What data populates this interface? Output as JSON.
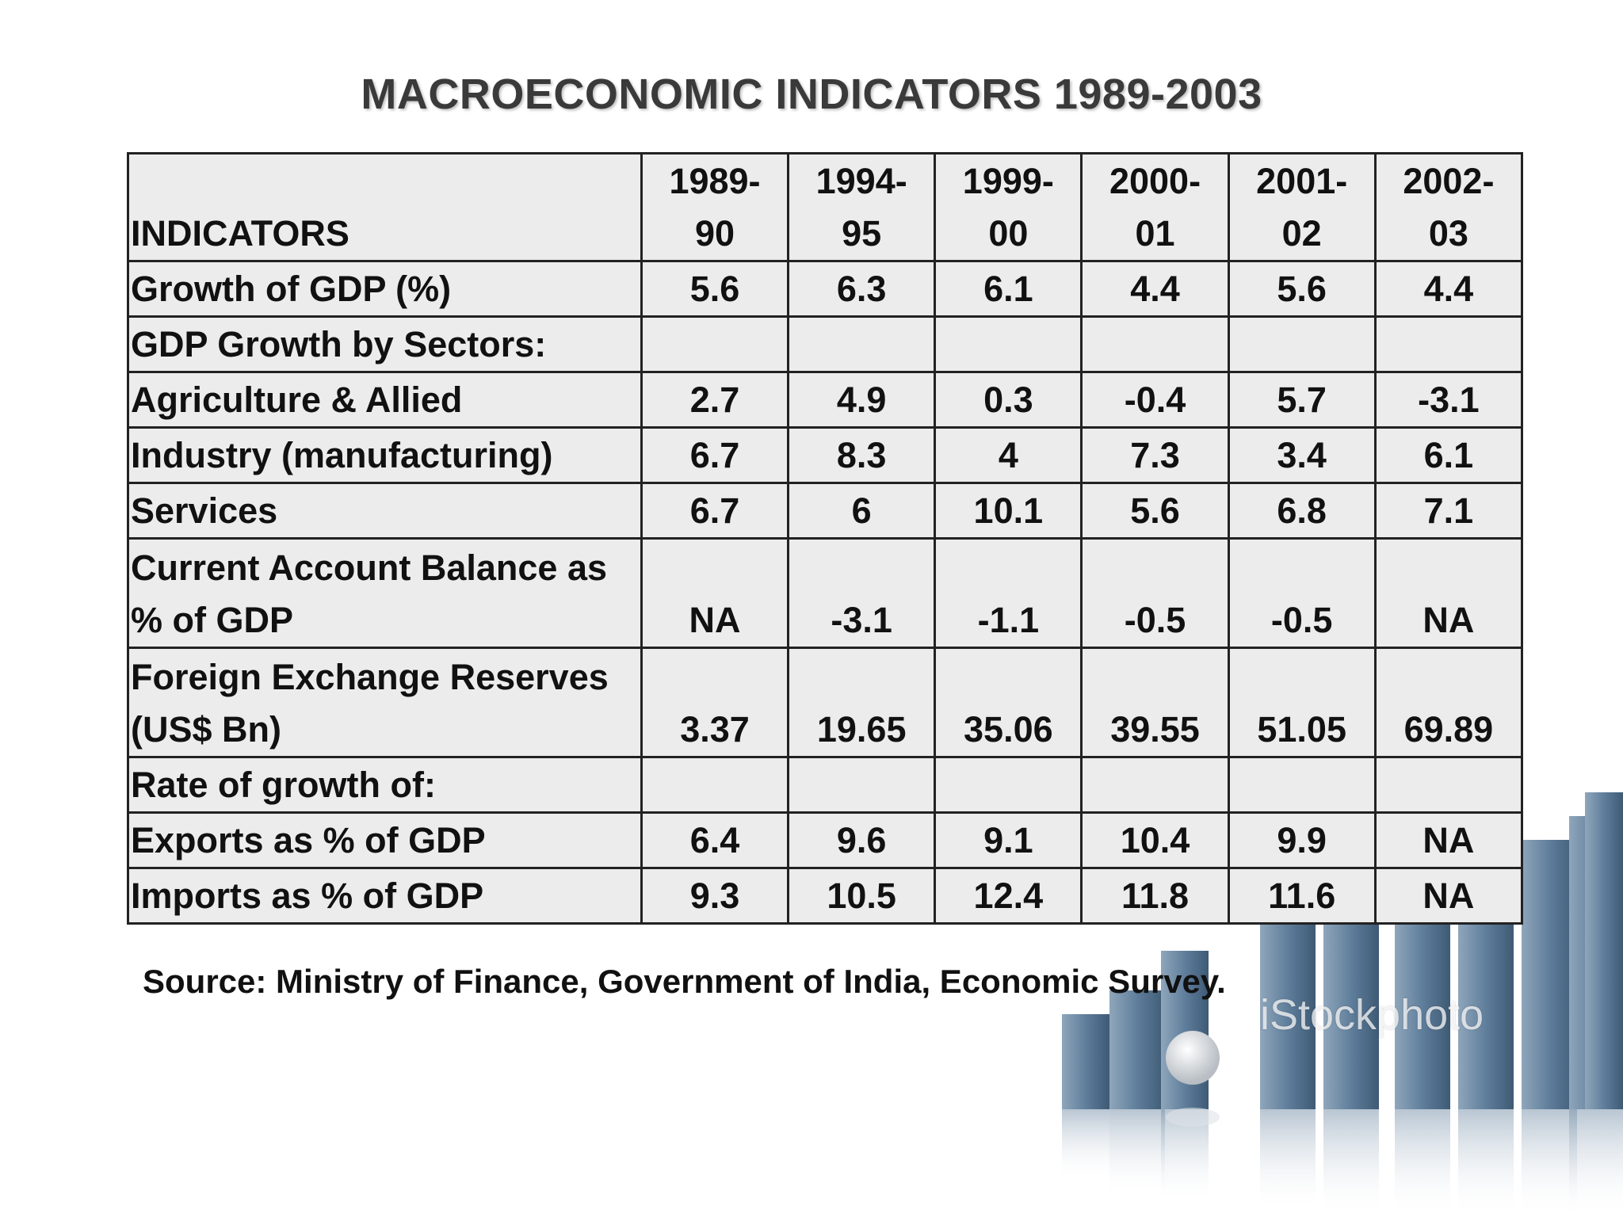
{
  "title": "MACROECONOMIC INDICATORS 1989-2003",
  "table": {
    "header_label": "INDICATORS",
    "years": [
      [
        "1989-",
        "90"
      ],
      [
        "1994-",
        "95"
      ],
      [
        "1999-",
        "00"
      ],
      [
        "2000-",
        "01"
      ],
      [
        "2001-",
        "02"
      ],
      [
        "2002-",
        "03"
      ]
    ],
    "rows": [
      {
        "label": [
          "Growth of GDP (%)"
        ],
        "values": [
          "5.6",
          "6.3",
          "6.1",
          "4.4",
          "5.6",
          "4.4"
        ]
      },
      {
        "label": [
          "GDP Growth by Sectors:"
        ],
        "values": [
          "",
          "",
          "",
          "",
          "",
          ""
        ]
      },
      {
        "label": [
          "Agriculture & Allied"
        ],
        "values": [
          "2.7",
          "4.9",
          "0.3",
          "-0.4",
          "5.7",
          "-3.1"
        ]
      },
      {
        "label": [
          "Industry (manufacturing)"
        ],
        "values": [
          "6.7",
          "8.3",
          "4",
          "7.3",
          "3.4",
          "6.1"
        ]
      },
      {
        "label": [
          "Services"
        ],
        "values": [
          "6.7",
          "6",
          "10.1",
          "5.6",
          "6.8",
          "7.1"
        ]
      },
      {
        "label": [
          "Current Account Balance as",
          "% of GDP"
        ],
        "values": [
          "NA",
          "-3.1",
          "-1.1",
          "-0.5",
          "-0.5",
          "NA"
        ]
      },
      {
        "label": [
          "Foreign Exchange Reserves",
          "(US$ Bn)"
        ],
        "values": [
          "3.37",
          "19.65",
          "35.06",
          "39.55",
          "51.05",
          "69.89"
        ]
      },
      {
        "label": [
          "Rate of growth of:"
        ],
        "values": [
          "",
          "",
          "",
          "",
          "",
          ""
        ]
      },
      {
        "label": [
          "Exports as % of GDP"
        ],
        "values": [
          "6.4",
          "9.6",
          "9.1",
          "10.4",
          "9.9",
          "NA"
        ]
      },
      {
        "label": [
          "Imports as % of GDP"
        ],
        "values": [
          "9.3",
          "10.5",
          "12.4",
          "11.8",
          "11.6",
          "NA"
        ]
      }
    ]
  },
  "source": "Source: Ministry of Finance, Government of India, Economic Survey.",
  "watermark": "iStockphoto",
  "decoration": {
    "icon": "3d-bar-chart-graphic",
    "bar_color": "#5f7e9b"
  }
}
